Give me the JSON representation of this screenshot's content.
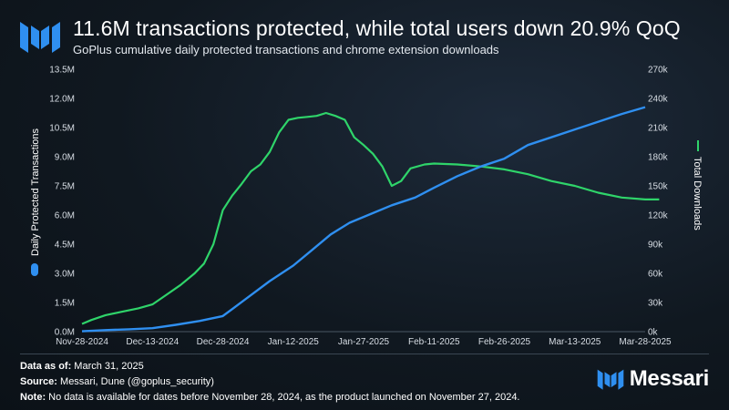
{
  "header": {
    "title": "11.6M transactions protected, while total users down 20.9% QoQ",
    "subtitle": "GoPlus cumulative daily protected transactions and chrome extension downloads"
  },
  "footer": {
    "data_as_of_label": "Data as of:",
    "data_as_of_value": " March 31, 2025",
    "source_label": "Source:",
    "source_value": " Messari, Dune (@goplus_security)",
    "note_label": "Note:",
    "note_value": " No data is available for dates before November 28, 2024, as the product launched on November 27, 2024."
  },
  "brand": {
    "name": "Messari"
  },
  "colors": {
    "transactions": "#2f8ff0",
    "downloads": "#2fd46a",
    "background": "#101820"
  },
  "chart_data": {
    "type": "line",
    "title": "11.6M transactions protected, while total users down 20.9% QoQ",
    "subtitle": "GoPlus cumulative daily protected transactions and chrome extension downloads",
    "x_ticks": [
      "Nov-28-2024",
      "Dec-13-2024",
      "Dec-28-2024",
      "Jan-12-2025",
      "Jan-27-2025",
      "Feb-11-2025",
      "Feb-26-2025",
      "Mar-13-2025",
      "Mar-28-2025"
    ],
    "x_range": [
      "Nov-28-2024",
      "Mar-28-2025"
    ],
    "y_left": {
      "label": "Daily Protected Transactions",
      "ticks": [
        "0.0M",
        "1.5M",
        "3.0M",
        "4.5M",
        "6.0M",
        "7.5M",
        "9.0M",
        "10.5M",
        "12.0M",
        "13.5M"
      ],
      "range": [
        0,
        13.5
      ]
    },
    "y_right": {
      "label": "Total Downloads",
      "ticks": [
        "0k",
        "30k",
        "60k",
        "90k",
        "120k",
        "150k",
        "180k",
        "210k",
        "240k",
        "270k"
      ],
      "range": [
        0,
        270
      ]
    },
    "grid": false,
    "series": [
      {
        "name": "Daily Protected Transactions",
        "axis": "left",
        "unit": "M",
        "points": [
          [
            "Nov-28-2024",
            0.02
          ],
          [
            "Dec-03-2024",
            0.08
          ],
          [
            "Dec-08-2024",
            0.12
          ],
          [
            "Dec-13-2024",
            0.18
          ],
          [
            "Dec-18-2024",
            0.35
          ],
          [
            "Dec-23-2024",
            0.55
          ],
          [
            "Dec-28-2024",
            0.8
          ],
          [
            "Jan-02-2025",
            1.7
          ],
          [
            "Jan-07-2025",
            2.6
          ],
          [
            "Jan-12-2025",
            3.4
          ],
          [
            "Jan-16-2025",
            4.2
          ],
          [
            "Jan-20-2025",
            5.0
          ],
          [
            "Jan-24-2025",
            5.6
          ],
          [
            "Jan-28-2025",
            6.0
          ],
          [
            "Feb-02-2025",
            6.5
          ],
          [
            "Feb-07-2025",
            6.9
          ],
          [
            "Feb-11-2025",
            7.4
          ],
          [
            "Feb-16-2025",
            8.0
          ],
          [
            "Feb-21-2025",
            8.5
          ],
          [
            "Feb-26-2025",
            8.9
          ],
          [
            "Mar-03-2025",
            9.6
          ],
          [
            "Mar-08-2025",
            10.0
          ],
          [
            "Mar-13-2025",
            10.4
          ],
          [
            "Mar-18-2025",
            10.8
          ],
          [
            "Mar-23-2025",
            11.2
          ],
          [
            "Mar-28-2025",
            11.55
          ]
        ]
      },
      {
        "name": "Total Downloads",
        "axis": "right",
        "unit": "k",
        "points": [
          [
            "Nov-28-2024",
            8
          ],
          [
            "Nov-30-2024",
            12
          ],
          [
            "Dec-03-2024",
            17
          ],
          [
            "Dec-06-2024",
            20
          ],
          [
            "Dec-10-2024",
            24
          ],
          [
            "Dec-13-2024",
            28
          ],
          [
            "Dec-16-2024",
            38
          ],
          [
            "Dec-19-2024",
            48
          ],
          [
            "Dec-22-2024",
            60
          ],
          [
            "Dec-24-2024",
            70
          ],
          [
            "Dec-26-2024",
            90
          ],
          [
            "Dec-28-2024",
            125
          ],
          [
            "Dec-30-2024",
            140
          ],
          [
            "Jan-01-2025",
            152
          ],
          [
            "Jan-03-2025",
            165
          ],
          [
            "Jan-05-2025",
            172
          ],
          [
            "Jan-07-2025",
            185
          ],
          [
            "Jan-09-2025",
            205
          ],
          [
            "Jan-11-2025",
            218
          ],
          [
            "Jan-13-2025",
            220
          ],
          [
            "Jan-15-2025",
            221
          ],
          [
            "Jan-17-2025",
            222
          ],
          [
            "Jan-19-2025",
            225
          ],
          [
            "Jan-21-2025",
            222
          ],
          [
            "Jan-23-2025",
            218
          ],
          [
            "Jan-25-2025",
            200
          ],
          [
            "Jan-27-2025",
            192
          ],
          [
            "Jan-29-2025",
            183
          ],
          [
            "Jan-31-2025",
            170
          ],
          [
            "Feb-02-2025",
            150
          ],
          [
            "Feb-04-2025",
            155
          ],
          [
            "Feb-06-2025",
            168
          ],
          [
            "Feb-09-2025",
            172
          ],
          [
            "Feb-11-2025",
            173
          ],
          [
            "Feb-16-2025",
            172
          ],
          [
            "Feb-21-2025",
            170
          ],
          [
            "Feb-26-2025",
            167
          ],
          [
            "Mar-03-2025",
            162
          ],
          [
            "Mar-08-2025",
            155
          ],
          [
            "Mar-13-2025",
            150
          ],
          [
            "Mar-18-2025",
            143
          ],
          [
            "Mar-23-2025",
            138
          ],
          [
            "Mar-28-2025",
            136
          ],
          [
            "Mar-31-2025",
            136
          ]
        ]
      }
    ]
  }
}
